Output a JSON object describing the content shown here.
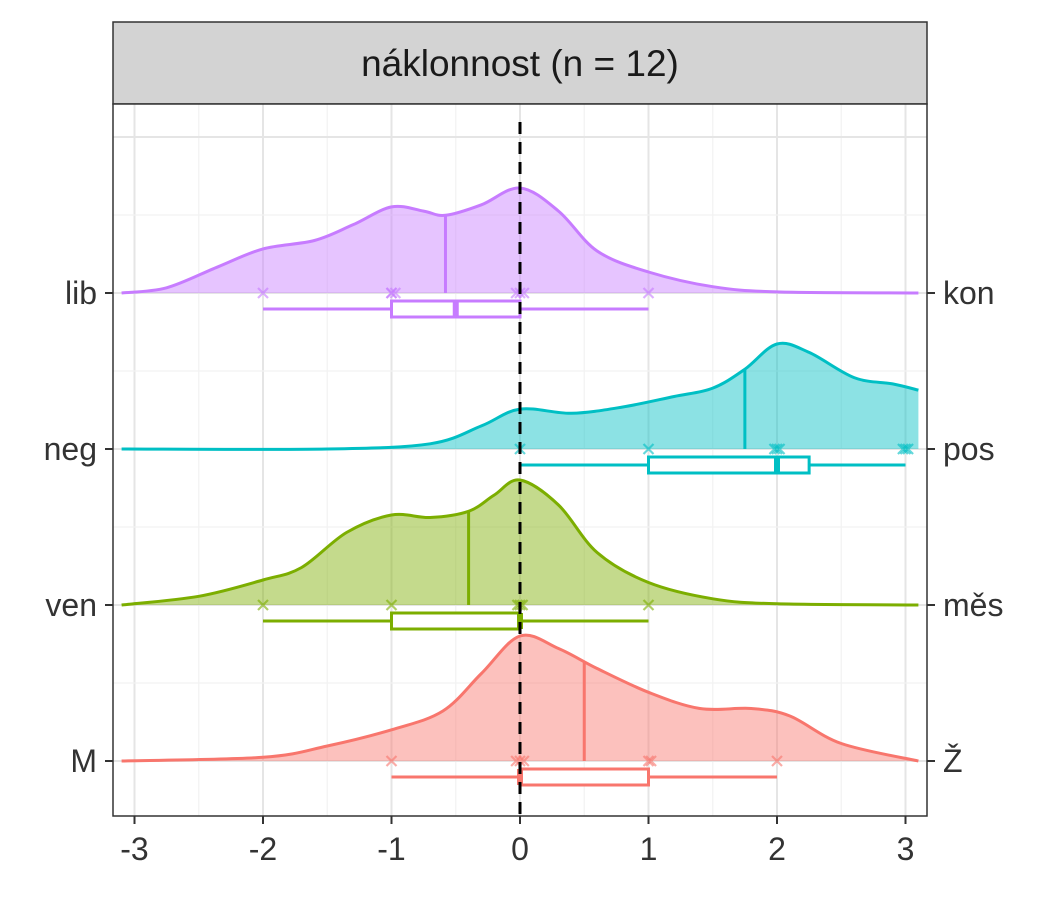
{
  "chart_data": {
    "type": "ridgeline",
    "panel_title": "náklonnost (n = 12)",
    "xlim": [
      -3.1,
      3.1
    ],
    "x_ticks": [
      -3,
      -2,
      -1,
      0,
      1,
      2,
      3
    ],
    "x_tick_labels": [
      "-3",
      "-2",
      "-1",
      "0",
      "1",
      "2",
      "3"
    ],
    "reference_line_x": 0,
    "grid": true,
    "rows": [
      {
        "left_label": "lib",
        "right_label": "kon",
        "color": "#C77CFF",
        "mean": -0.58,
        "points": [
          -2,
          -1,
          -1,
          -0.97,
          -0.03,
          0,
          0.03,
          1
        ],
        "box": {
          "whisker_low": -2,
          "q1": -1,
          "median": -0.5,
          "q3": 0,
          "whisker_high": 1
        },
        "density": [
          [
            -3.1,
            0.0
          ],
          [
            -2.75,
            0.05
          ],
          [
            -2.35,
            0.25
          ],
          [
            -2.0,
            0.42
          ],
          [
            -1.6,
            0.5
          ],
          [
            -1.3,
            0.65
          ],
          [
            -1.0,
            0.82
          ],
          [
            -0.75,
            0.78
          ],
          [
            -0.58,
            0.74
          ],
          [
            -0.3,
            0.84
          ],
          [
            0.0,
            1.0
          ],
          [
            0.3,
            0.78
          ],
          [
            0.6,
            0.4
          ],
          [
            1.0,
            0.2
          ],
          [
            1.5,
            0.06
          ],
          [
            2.0,
            0.01
          ],
          [
            3.1,
            0.0
          ]
        ]
      },
      {
        "left_label": "neg",
        "right_label": "pos",
        "color": "#00BFC4",
        "mean": 1.75,
        "points": [
          0,
          1,
          1.98,
          2,
          2.02,
          2.98,
          3,
          3.02
        ],
        "box": {
          "whisker_low": 0,
          "q1": 1,
          "median": 2,
          "q3": 2.25,
          "whisker_high": 3
        },
        "density": [
          [
            -3.1,
            0.0
          ],
          [
            -1.5,
            0.0
          ],
          [
            -0.7,
            0.05
          ],
          [
            -0.3,
            0.22
          ],
          [
            0.0,
            0.38
          ],
          [
            0.4,
            0.34
          ],
          [
            0.8,
            0.4
          ],
          [
            1.2,
            0.5
          ],
          [
            1.5,
            0.58
          ],
          [
            1.75,
            0.76
          ],
          [
            2.0,
            1.0
          ],
          [
            2.25,
            0.92
          ],
          [
            2.6,
            0.68
          ],
          [
            2.9,
            0.62
          ],
          [
            3.1,
            0.56
          ]
        ]
      },
      {
        "left_label": "ven",
        "right_label": "měs",
        "color": "#7CAE00",
        "mean": -0.4,
        "points": [
          -2,
          -1,
          -0.02,
          0,
          0.02,
          1
        ],
        "box": {
          "whisker_low": -2,
          "q1": -1,
          "median": 0,
          "q3": 0,
          "whisker_high": 1
        },
        "density": [
          [
            -3.1,
            0.0
          ],
          [
            -2.5,
            0.07
          ],
          [
            -2.0,
            0.2
          ],
          [
            -1.7,
            0.3
          ],
          [
            -1.35,
            0.58
          ],
          [
            -1.0,
            0.72
          ],
          [
            -0.7,
            0.7
          ],
          [
            -0.4,
            0.75
          ],
          [
            -0.2,
            0.88
          ],
          [
            0.0,
            1.0
          ],
          [
            0.3,
            0.8
          ],
          [
            0.6,
            0.42
          ],
          [
            1.0,
            0.18
          ],
          [
            1.5,
            0.05
          ],
          [
            2.0,
            0.01
          ],
          [
            3.1,
            0.0
          ]
        ]
      },
      {
        "left_label": "M",
        "right_label": "Ž",
        "color": "#F8766D",
        "mean": 0.5,
        "points": [
          -1,
          -0.03,
          0,
          0.03,
          1,
          1.02,
          2
        ],
        "box": {
          "whisker_low": -1,
          "q1": 0,
          "median": 0,
          "q3": 1,
          "whisker_high": 2
        },
        "density": [
          [
            -3.1,
            0.0
          ],
          [
            -2.0,
            0.03
          ],
          [
            -1.5,
            0.12
          ],
          [
            -1.0,
            0.25
          ],
          [
            -0.6,
            0.4
          ],
          [
            -0.3,
            0.7
          ],
          [
            0.0,
            1.0
          ],
          [
            0.3,
            0.9
          ],
          [
            0.6,
            0.74
          ],
          [
            1.0,
            0.55
          ],
          [
            1.4,
            0.42
          ],
          [
            1.8,
            0.42
          ],
          [
            2.1,
            0.36
          ],
          [
            2.5,
            0.14
          ],
          [
            3.1,
            0.0
          ]
        ]
      }
    ]
  }
}
